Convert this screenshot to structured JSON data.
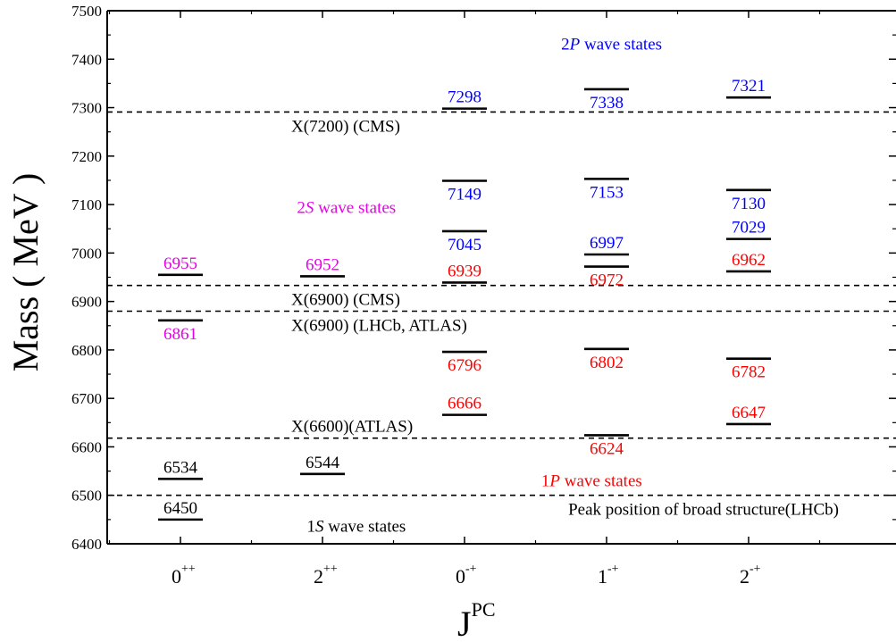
{
  "chart_data": {
    "type": "scatter",
    "ylabel": "Mass ( MeV )",
    "xlabel": {
      "base": "J",
      "sup": "PC"
    },
    "ylim": [
      6400,
      7500
    ],
    "yticks": [
      6400,
      6500,
      6600,
      6700,
      6800,
      6900,
      7000,
      7100,
      7200,
      7300,
      7400,
      7500
    ],
    "categories": [
      {
        "base": "0",
        "sup": "++"
      },
      {
        "base": "2",
        "sup": "++"
      },
      {
        "base": "0",
        "sup": "-+"
      },
      {
        "base": "1",
        "sup": "-+"
      },
      {
        "base": "2",
        "sup": "-+"
      }
    ],
    "colors": {
      "1S": "#000000",
      "2S": "#e800e8",
      "1P": "#ff0000",
      "2P": "#0000ff"
    },
    "levels": [
      {
        "cat": 0,
        "mass": 6450,
        "label": "6450",
        "group": "1S",
        "label_pos": "above"
      },
      {
        "cat": 0,
        "mass": 6534,
        "label": "6534",
        "group": "1S",
        "label_pos": "above"
      },
      {
        "cat": 1,
        "mass": 6544,
        "label": "6544",
        "group": "1S",
        "label_pos": "above"
      },
      {
        "cat": 0,
        "mass": 6861,
        "label": "6861",
        "group": "2S",
        "label_pos": "below"
      },
      {
        "cat": 0,
        "mass": 6955,
        "label": "6955",
        "group": "2S",
        "label_pos": "above"
      },
      {
        "cat": 1,
        "mass": 6952,
        "label": "6952",
        "group": "2S",
        "label_pos": "above"
      },
      {
        "cat": 2,
        "mass": 6666,
        "label": "6666",
        "group": "1P",
        "label_pos": "above"
      },
      {
        "cat": 2,
        "mass": 6796,
        "label": "6796",
        "group": "1P",
        "label_pos": "below"
      },
      {
        "cat": 2,
        "mass": 6939,
        "label": "6939",
        "group": "1P",
        "label_pos": "above"
      },
      {
        "cat": 3,
        "mass": 6624,
        "label": "6624",
        "group": "1P",
        "label_pos": "below"
      },
      {
        "cat": 3,
        "mass": 6802,
        "label": "6802",
        "group": "1P",
        "label_pos": "below"
      },
      {
        "cat": 3,
        "mass": 6972,
        "label": "6972",
        "group": "1P",
        "label_pos": "below"
      },
      {
        "cat": 4,
        "mass": 6647,
        "label": "6647",
        "group": "1P",
        "label_pos": "above"
      },
      {
        "cat": 4,
        "mass": 6782,
        "label": "6782",
        "group": "1P",
        "label_pos": "below"
      },
      {
        "cat": 4,
        "mass": 6962,
        "label": "6962",
        "group": "1P",
        "label_pos": "above"
      },
      {
        "cat": 2,
        "mass": 7045,
        "label": "7045",
        "group": "2P",
        "label_pos": "below"
      },
      {
        "cat": 2,
        "mass": 7149,
        "label": "7149",
        "group": "2P",
        "label_pos": "below"
      },
      {
        "cat": 2,
        "mass": 7298,
        "label": "7298",
        "group": "2P",
        "label_pos": "above"
      },
      {
        "cat": 3,
        "mass": 6997,
        "label": "6997",
        "group": "2P",
        "label_pos": "above"
      },
      {
        "cat": 3,
        "mass": 7153,
        "label": "7153",
        "group": "2P",
        "label_pos": "below"
      },
      {
        "cat": 3,
        "mass": 7338,
        "label": "7338",
        "group": "2P",
        "label_pos": "below"
      },
      {
        "cat": 4,
        "mass": 7029,
        "label": "7029",
        "group": "2P",
        "label_pos": "above"
      },
      {
        "cat": 4,
        "mass": 7130,
        "label": "7130",
        "group": "2P",
        "label_pos": "below"
      },
      {
        "cat": 4,
        "mass": 7321,
        "label": "7321",
        "group": "2P",
        "label_pos": "above"
      }
    ],
    "reference_lines": [
      {
        "mass": 7291,
        "label": "X(7200) (CMS)",
        "label_x": 0.78,
        "label_pos": "below"
      },
      {
        "mass": 6933,
        "label": "X(6900) (CMS)",
        "label_x": 0.78,
        "label_pos": "below"
      },
      {
        "mass": 6880,
        "label": "X(6900) (LHCb, ATLAS)",
        "label_x": 0.78,
        "label_pos": "below"
      },
      {
        "mass": 6618,
        "label": "X(6600)(ATLAS)",
        "label_x": 0.78,
        "label_pos": "above"
      },
      {
        "mass": 6500,
        "label": "Peak position of broad structure(LHCb)",
        "label_x": 2.73,
        "label_pos": "below"
      }
    ],
    "group_labels": [
      {
        "num": "2",
        "letter": "P",
        "rest": " wave states",
        "group": "2P",
        "x": 2.68,
        "mass": 7420
      },
      {
        "num": "2",
        "letter": "S",
        "rest": " wave states",
        "group": "2S",
        "x": 0.82,
        "mass": 7083
      },
      {
        "num": "1",
        "letter": "P",
        "rest": " wave states",
        "group": "1P",
        "x": 2.54,
        "mass": 6519
      },
      {
        "num": "1",
        "letter": "S",
        "rest": " wave states",
        "group": "1S",
        "x": 0.89,
        "mass": 6425
      }
    ]
  }
}
